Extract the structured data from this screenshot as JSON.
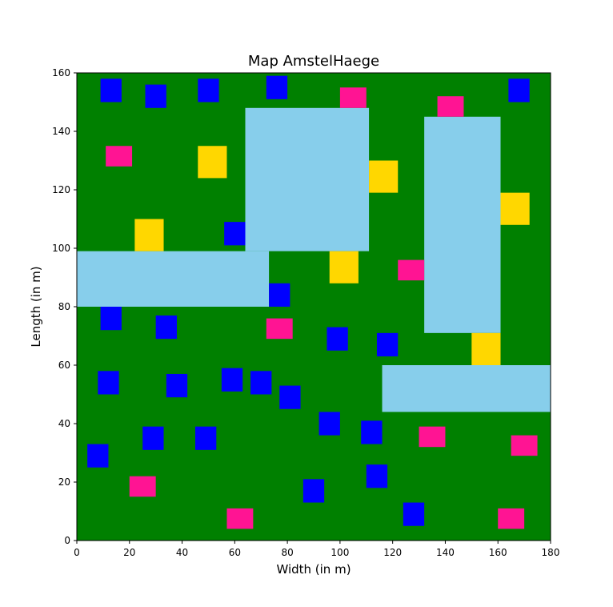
{
  "chart_data": {
    "type": "heatmap",
    "title": "Map AmstelHaege",
    "xlabel": "Width (in m)",
    "ylabel": "Length (in m)",
    "xlim": [
      0,
      180
    ],
    "ylim": [
      0,
      160
    ],
    "xticks": [
      0,
      20,
      40,
      60,
      80,
      100,
      120,
      140,
      160,
      180
    ],
    "yticks": [
      0,
      20,
      40,
      60,
      80,
      100,
      120,
      140,
      160
    ],
    "grid": false,
    "colors": {
      "land": "#008000",
      "water": "#87ceeb",
      "single": "#0000ff",
      "bungalow": "#ff1493",
      "maison": "#ffd700"
    },
    "water": [
      {
        "x0": 64,
        "x1": 111,
        "y0": 99,
        "y1": 148
      },
      {
        "x0": 0,
        "x1": 73,
        "y0": 80,
        "y1": 99
      },
      {
        "x0": 132,
        "x1": 161,
        "y0": 71,
        "y1": 145
      },
      {
        "x0": 116,
        "x1": 180,
        "y0": 44,
        "y1": 60
      }
    ],
    "houses": [
      {
        "type": "single",
        "x0": 9,
        "x1": 17,
        "y0": 150,
        "y1": 158
      },
      {
        "type": "single",
        "x0": 26,
        "x1": 34,
        "y0": 148,
        "y1": 156
      },
      {
        "type": "single",
        "x0": 46,
        "x1": 54,
        "y0": 150,
        "y1": 158
      },
      {
        "type": "single",
        "x0": 72,
        "x1": 80,
        "y0": 151,
        "y1": 159
      },
      {
        "type": "single",
        "x0": 164,
        "x1": 172,
        "y0": 150,
        "y1": 158
      },
      {
        "type": "single",
        "x0": 56,
        "x1": 64,
        "y0": 101,
        "y1": 109
      },
      {
        "type": "single",
        "x0": 73,
        "x1": 81,
        "y0": 80,
        "y1": 88
      },
      {
        "type": "single",
        "x0": 9,
        "x1": 17,
        "y0": 72,
        "y1": 80
      },
      {
        "type": "single",
        "x0": 30,
        "x1": 38,
        "y0": 69,
        "y1": 77
      },
      {
        "type": "single",
        "x0": 95,
        "x1": 103,
        "y0": 65,
        "y1": 73
      },
      {
        "type": "single",
        "x0": 114,
        "x1": 122,
        "y0": 63,
        "y1": 71
      },
      {
        "type": "single",
        "x0": 8,
        "x1": 16,
        "y0": 50,
        "y1": 58
      },
      {
        "type": "single",
        "x0": 34,
        "x1": 42,
        "y0": 49,
        "y1": 57
      },
      {
        "type": "single",
        "x0": 55,
        "x1": 63,
        "y0": 51,
        "y1": 59
      },
      {
        "type": "single",
        "x0": 66,
        "x1": 74,
        "y0": 50,
        "y1": 58
      },
      {
        "type": "single",
        "x0": 77,
        "x1": 85,
        "y0": 45,
        "y1": 53
      },
      {
        "type": "single",
        "x0": 92,
        "x1": 100,
        "y0": 36,
        "y1": 44
      },
      {
        "type": "single",
        "x0": 108,
        "x1": 116,
        "y0": 33,
        "y1": 41
      },
      {
        "type": "single",
        "x0": 25,
        "x1": 33,
        "y0": 31,
        "y1": 39
      },
      {
        "type": "single",
        "x0": 45,
        "x1": 53,
        "y0": 31,
        "y1": 39
      },
      {
        "type": "single",
        "x0": 4,
        "x1": 12,
        "y0": 25,
        "y1": 33
      },
      {
        "type": "single",
        "x0": 110,
        "x1": 118,
        "y0": 18,
        "y1": 26
      },
      {
        "type": "single",
        "x0": 86,
        "x1": 94,
        "y0": 13,
        "y1": 21
      },
      {
        "type": "single",
        "x0": 124,
        "x1": 132,
        "y0": 5,
        "y1": 13
      },
      {
        "type": "bungalow",
        "x0": 100,
        "x1": 110,
        "y0": 148,
        "y1": 155
      },
      {
        "type": "bungalow",
        "x0": 137,
        "x1": 147,
        "y0": 145,
        "y1": 152
      },
      {
        "type": "bungalow",
        "x0": 11,
        "x1": 21,
        "y0": 128,
        "y1": 135
      },
      {
        "type": "bungalow",
        "x0": 122,
        "x1": 132,
        "y0": 89,
        "y1": 96
      },
      {
        "type": "bungalow",
        "x0": 72,
        "x1": 82,
        "y0": 69,
        "y1": 76
      },
      {
        "type": "bungalow",
        "x0": 130,
        "x1": 140,
        "y0": 32,
        "y1": 39
      },
      {
        "type": "bungalow",
        "x0": 165,
        "x1": 175,
        "y0": 29,
        "y1": 36
      },
      {
        "type": "bungalow",
        "x0": 20,
        "x1": 30,
        "y0": 15,
        "y1": 22
      },
      {
        "type": "bungalow",
        "x0": 57,
        "x1": 67,
        "y0": 4,
        "y1": 11
      },
      {
        "type": "bungalow",
        "x0": 160,
        "x1": 170,
        "y0": 4,
        "y1": 11
      },
      {
        "type": "maison",
        "x0": 46,
        "x1": 57,
        "y0": 124,
        "y1": 135
      },
      {
        "type": "maison",
        "x0": 111,
        "x1": 122,
        "y0": 119,
        "y1": 130
      },
      {
        "type": "maison",
        "x0": 161,
        "x1": 172,
        "y0": 108,
        "y1": 119
      },
      {
        "type": "maison",
        "x0": 22,
        "x1": 33,
        "y0": 99,
        "y1": 110
      },
      {
        "type": "maison",
        "x0": 96,
        "x1": 107,
        "y0": 88,
        "y1": 99
      },
      {
        "type": "maison",
        "x0": 150,
        "x1": 161,
        "y0": 60,
        "y1": 71
      }
    ]
  }
}
